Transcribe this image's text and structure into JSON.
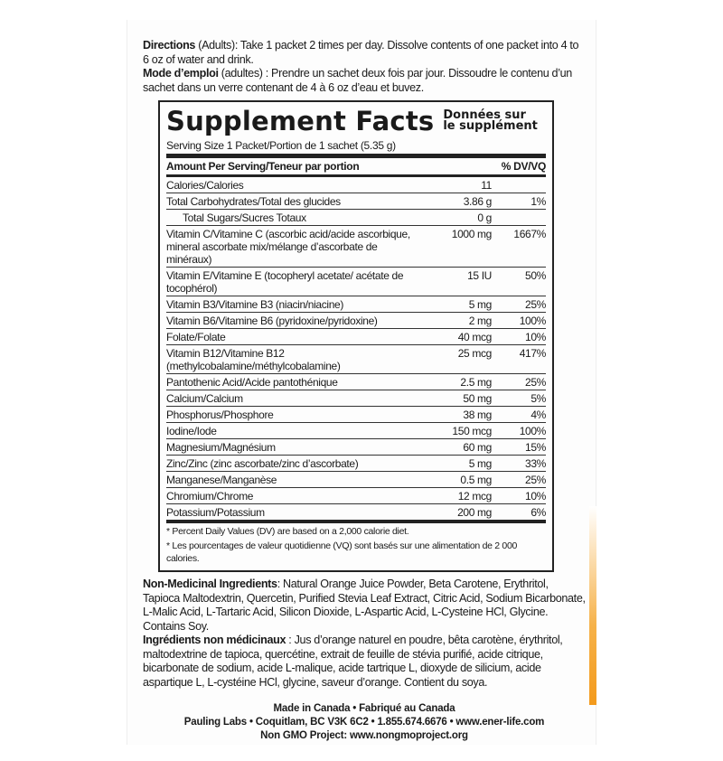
{
  "directions": {
    "en_label": "Directions",
    "en_text": " (Adults): Take 1 packet 2 times per day. Dissolve contents of one packet into 4 to 6 oz of water and drink.",
    "fr_label": "Mode d’emploi",
    "fr_text": " (adultes) : Prendre un sachet deux fois par jour. Dissoudre le contenu d’un sachet dans un verre contenant de 4 à 6 oz d’eau et buvez."
  },
  "facts": {
    "title_en": "Supplement Facts",
    "title_fr_1": "Données sur",
    "title_fr_2": "le supplément",
    "serving": "Serving Size 1 Packet/Portion de 1 sachet (5.35 g)",
    "amount_header": "Amount Per Serving/Teneur par portion",
    "dv_header": "% DV/VQ",
    "rows": [
      {
        "name": "Calories/Calories",
        "amount": "11",
        "dv": ""
      },
      {
        "name": "Total Carbohydrates/Total des glucides",
        "amount": "3.86 g",
        "dv": "1%"
      },
      {
        "name": "Total Sugars/Sucres Totaux",
        "amount": "0 g",
        "dv": "",
        "indent": true
      },
      {
        "name": "Vitamin C/Vitamine C (ascorbic acid/acide ascorbique, mineral ascorbate mix/mélange d’ascorbate de minéraux)",
        "amount": "1000 mg",
        "dv": "1667%"
      },
      {
        "name": "Vitamin E/Vitamine E (tocopheryl acetate/ acétate de tocophérol)",
        "amount": "15 IU",
        "dv": "50%"
      },
      {
        "name": "Vitamin B3/Vitamine B3 (niacin/niacine)",
        "amount": "5 mg",
        "dv": "25%"
      },
      {
        "name": "Vitamin B6/Vitamine B6 (pyridoxine/pyridoxine)",
        "amount": "2 mg",
        "dv": "100%"
      },
      {
        "name": "Folate/Folate",
        "amount": "40 mcg",
        "dv": "10%"
      },
      {
        "name": "Vitamin B12/Vitamine B12 (methylcobalamine/méthylcobalamine)",
        "amount": "25 mcg",
        "dv": "417%"
      },
      {
        "name": "Pantothenic Acid/Acide pantothénique",
        "amount": "2.5 mg",
        "dv": "25%"
      },
      {
        "name": "Calcium/Calcium",
        "amount": "50 mg",
        "dv": "5%"
      },
      {
        "name": "Phosphorus/Phosphore",
        "amount": "38 mg",
        "dv": "4%"
      },
      {
        "name": "Iodine/Iode",
        "amount": "150 mcg",
        "dv": "100%"
      },
      {
        "name": "Magnesium/Magnésium",
        "amount": "60 mg",
        "dv": "15%"
      },
      {
        "name": "Zinc/Zinc (zinc ascorbate/zinc d’ascorbate)",
        "amount": "5 mg",
        "dv": "33%"
      },
      {
        "name": "Manganese/Manganèse",
        "amount": "0.5 mg",
        "dv": "25%"
      },
      {
        "name": "Chromium/Chrome",
        "amount": "12 mcg",
        "dv": "10%"
      },
      {
        "name": "Potassium/Potassium",
        "amount": "200 mg",
        "dv": "6%"
      }
    ],
    "footnote_en": "* Percent Daily Values (DV) are based on a 2,000 calorie diet.",
    "footnote_fr": "* Les pourcentages de valeur quotidienne (VQ) sont basés sur une alimentation de 2 000 calories."
  },
  "ingredients": {
    "en_label": "Non-Medicinal Ingredients",
    "en_text": ": Natural Orange Juice Powder, Beta Carotene, Erythritol, Tapioca Maltodextrin, Quercetin, Purified Stevia Leaf Extract, Citric Acid, Sodium Bicarbonate, L-Malic Acid, L-Tartaric Acid, Silicon Dioxide, L-Aspartic Acid, L-Cysteine HCl, Glycine. Contains Soy.",
    "fr_label": "Ingrédients non médicinaux",
    "fr_text": " : Jus d’orange naturel en poudre, bêta carotène, érythritol, maltodextrine de tapioca, quercétine, extrait de feuille de stévia purifié, acide citrique, bicarbonate de sodium, acide L-malique, acide tartrique L, dioxyde de silicium, acide aspartique L, L-cystéine HCl, glycine, saveur d’orange. Contient du soya."
  },
  "footer": {
    "line1": "Made in Canada • Fabriqué au Canada",
    "line2": "Pauling Labs • Coquitlam, BC  V3K 6C2 • 1.855.674.6676 • www.ener-life.com",
    "line3": "Non GMO Project: www.nongmoproject.org"
  }
}
